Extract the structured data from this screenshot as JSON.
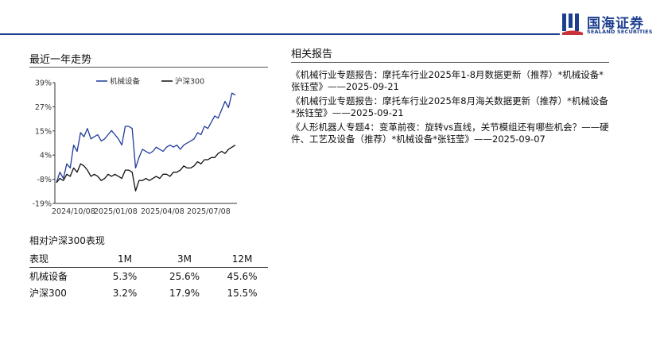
{
  "header": {
    "logo_cn": "国海证券",
    "logo_en": "SEALAND SECURITIES"
  },
  "left": {
    "title": "最近一年走势",
    "table_title": "相对沪深300表现",
    "table": {
      "headers": [
        "表现",
        "1M",
        "3M",
        "12M"
      ],
      "rows": [
        [
          "机械设备",
          "5.3%",
          "25.6%",
          "45.6%"
        ],
        [
          "沪深300",
          "3.2%",
          "17.9%",
          "15.5%"
        ]
      ]
    }
  },
  "right": {
    "title": "相关报告",
    "reports": [
      "《机械行业专题报告：摩托车行业2025年1-8月数据更新（推荐）*机械设备*张钰莹》——2025-09-21",
      "《机械行业专题报告：摩托车行业2025年8月海关数据更新（推荐）*机械设备*张钰莹》——2025-09-21",
      "《人形机器人专题4：变革前夜：旋转vs直线，关节模组还有哪些机会？——硬件、工艺及设备（推荐）*机械设备*张钰莹》——2025-09-07"
    ]
  },
  "colors": {
    "brand": "#1d3f8f",
    "series1": "#1f3c99",
    "series2": "#111111"
  },
  "chart_data": {
    "type": "line",
    "yticks": [
      "39%",
      "27%",
      "15%",
      "4%",
      "-8%",
      "-19%"
    ],
    "ylim": [
      -19,
      39
    ],
    "xticks": [
      "2024/10/08",
      "2025/01/08",
      "2025/04/08",
      "2025/07/08"
    ],
    "legend_position": "top",
    "series": [
      {
        "name": "机械设备",
        "color": "#1f3c99",
        "values": [
          -9,
          -4,
          -7,
          0,
          -2,
          9,
          6,
          15,
          13,
          17,
          12,
          13,
          14,
          11,
          12,
          14,
          16,
          14,
          12,
          9,
          18,
          18,
          17,
          -2,
          3,
          7,
          6,
          5,
          6,
          8,
          7,
          6,
          8,
          9,
          8,
          9,
          7,
          9,
          10,
          11,
          12,
          15,
          14,
          18,
          17,
          20,
          23,
          22,
          26,
          30,
          27,
          34,
          33
        ]
      },
      {
        "name": "沪深300",
        "color": "#111111",
        "values": [
          -9,
          -7,
          -8,
          -5,
          -6,
          -2,
          -4,
          0,
          -1,
          -3,
          -6,
          -5,
          -6,
          -8,
          -7,
          -5,
          -6,
          -5,
          -6,
          -7,
          -3,
          -3,
          -4,
          -13,
          -8,
          -8,
          -7,
          -8,
          -7,
          -6,
          -7,
          -5,
          -5,
          -6,
          -4,
          -4,
          -3,
          -1,
          -2,
          -2,
          -1,
          1,
          0,
          2,
          2,
          3,
          3,
          5,
          6,
          5,
          7,
          8,
          9
        ]
      }
    ]
  }
}
